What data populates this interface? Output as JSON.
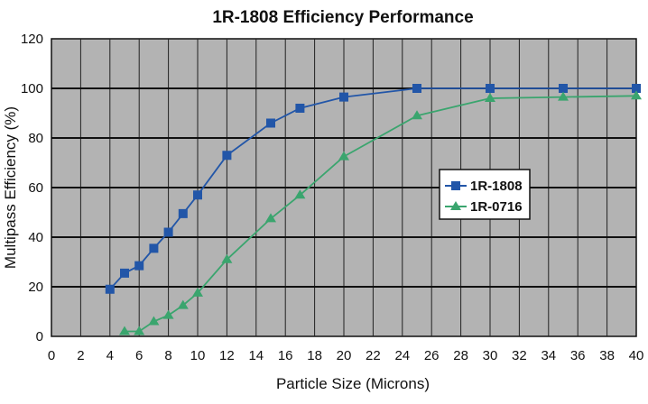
{
  "chart_data": {
    "type": "line",
    "title": "1R-1808 Efficiency Performance",
    "xlabel": "Particle Size (Microns)",
    "ylabel": "Multipass Efficiency (%)",
    "xlim": [
      0,
      40
    ],
    "ylim": [
      0,
      120
    ],
    "xticks": [
      "0",
      "2",
      "4",
      "6",
      "8",
      "10",
      "12",
      "14",
      "16",
      "18",
      "20",
      "22",
      "24",
      "26",
      "28",
      "30",
      "32",
      "34",
      "36",
      "38",
      "40"
    ],
    "yticks": [
      "0",
      "20",
      "40",
      "60",
      "80",
      "100",
      "120"
    ],
    "grid": true,
    "legend_position": "center-right",
    "series": [
      {
        "name": "1R-1808",
        "color": "#2256a8",
        "marker": "square",
        "x": [
          4,
          5,
          6,
          7,
          8,
          9,
          10,
          12,
          15,
          17,
          20,
          25,
          30,
          35,
          40
        ],
        "y": [
          19,
          25.5,
          28.5,
          35.5,
          42,
          49.5,
          57,
          73,
          86,
          92,
          96.5,
          100,
          100,
          100,
          100
        ]
      },
      {
        "name": "1R-0716",
        "color": "#3aa56e",
        "marker": "triangle",
        "x": [
          5,
          6,
          7,
          8,
          9,
          10,
          12,
          15,
          17,
          20,
          25,
          30,
          35,
          40
        ],
        "y": [
          2,
          2,
          6,
          8.5,
          12.5,
          17.5,
          31,
          47.5,
          57,
          72.5,
          89,
          96,
          96.5,
          97
        ]
      }
    ]
  }
}
